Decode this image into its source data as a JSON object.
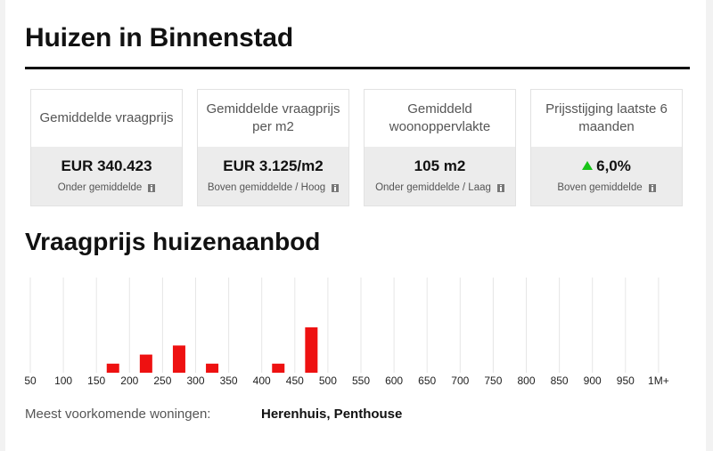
{
  "header": {
    "title": "Huizen in Binnenstad"
  },
  "stats": [
    {
      "label": "Gemiddelde vraagprijs",
      "value": "EUR 340.423",
      "sub": "Onder gemiddelde",
      "trend": "",
      "info_icon": "info-icon"
    },
    {
      "label": "Gemiddelde vraagprijs per m2",
      "value": "EUR 3.125/m2",
      "sub": "Boven gemiddelde / Hoog",
      "trend": "",
      "info_icon": "info-icon"
    },
    {
      "label": "Gemiddeld woonoppervlakte",
      "value": "105 m2",
      "sub": "Onder gemiddelde / Laag",
      "trend": "",
      "info_icon": "info-icon"
    },
    {
      "label": "Prijsstijging laatste 6 maanden",
      "value": "6,0%",
      "sub": "Boven gemiddelde",
      "trend": "up",
      "info_icon": "info-icon"
    }
  ],
  "section": {
    "title": "Vraagprijs huizenaanbod"
  },
  "chart_data": {
    "type": "bar",
    "xlabel": "",
    "ylabel": "",
    "x_ticks": [
      "50",
      "100",
      "150",
      "200",
      "250",
      "300",
      "350",
      "400",
      "450",
      "500",
      "550",
      "600",
      "650",
      "700",
      "750",
      "800",
      "850",
      "900",
      "950",
      "1M+"
    ],
    "bins": [
      {
        "from": 150,
        "to": 200,
        "value": 1
      },
      {
        "from": 200,
        "to": 250,
        "value": 2
      },
      {
        "from": 250,
        "to": 300,
        "value": 3
      },
      {
        "from": 300,
        "to": 350,
        "value": 1
      },
      {
        "from": 400,
        "to": 450,
        "value": 1
      },
      {
        "from": 450,
        "to": 500,
        "value": 5
      }
    ],
    "ylim": [
      0,
      5
    ],
    "grid": true,
    "bar_color": "#ee1111",
    "grid_color": "#e6e6e6"
  },
  "footer": {
    "label": "Meest voorkomende woningen:",
    "value": "Herenhuis, Penthouse"
  }
}
